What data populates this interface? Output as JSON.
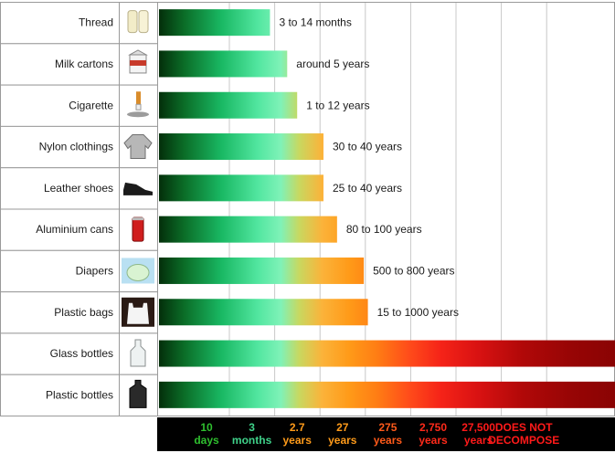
{
  "chart_data": {
    "type": "bar",
    "orientation": "horizontal",
    "title": "",
    "xlabel": "",
    "ylabel": "",
    "x_scale": "ordinal-log",
    "x_ticks": [
      {
        "top": "10",
        "bottom": "days",
        "color": "#2fbf2f"
      },
      {
        "top": "3",
        "bottom": "months",
        "color": "#3fd28a"
      },
      {
        "top": "2.7",
        "bottom": "years",
        "color": "#ff9b1a"
      },
      {
        "top": "27",
        "bottom": "years",
        "color": "#ff9b1a"
      },
      {
        "top": "275",
        "bottom": "years",
        "color": "#ff5a1a"
      },
      {
        "top": "2,750",
        "bottom": "years",
        "color": "#ff2a1a"
      },
      {
        "top": "27,500",
        "bottom": "years",
        "color": "#ff1a1a"
      },
      {
        "top": "DOES NOT",
        "bottom": "DECOMPOSE",
        "color": "#ff1a1a"
      }
    ],
    "categories": [
      "Thread",
      "Milk cartons",
      "Cigarette",
      "Nylon clothings",
      "Leather shoes",
      "Aluminium cans",
      "Diapers",
      "Plastic bags",
      "Glass bottles",
      "Plastic bottles"
    ],
    "icons": [
      "thread-spools-icon",
      "milk-carton-icon",
      "cigarette-butt-icon",
      "nylon-jacket-icon",
      "leather-shoe-icon",
      "aluminium-can-icon",
      "diaper-icon",
      "plastic-bag-icon",
      "glass-bottle-icon",
      "plastic-bottle-icon"
    ],
    "value_labels": [
      "3 to 14 months",
      "around 5 years",
      "1 to 12 years",
      "30 to 40 years",
      "25 to 40 years",
      "80 to 100 years",
      "500 to 800 years",
      "15 to 1000 years",
      "",
      ""
    ],
    "bar_end_tick_position": [
      1.4,
      1.78,
      2.0,
      2.58,
      2.58,
      2.88,
      3.47,
      3.56,
      8.0,
      8.0
    ],
    "grid": true
  }
}
